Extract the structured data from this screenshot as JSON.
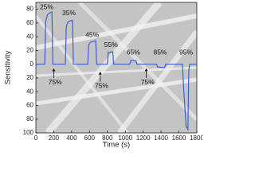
{
  "chart_data": {
    "type": "line",
    "x_label": "Time (s)",
    "y_label": "Sensitivity",
    "x": [
      0,
      100,
      110,
      130,
      170,
      180,
      190,
      330,
      340,
      360,
      410,
      420,
      430,
      580,
      590,
      610,
      670,
      680,
      690,
      800,
      810,
      860,
      870,
      880,
      1050,
      1060,
      1120,
      1130,
      1140,
      1350,
      1360,
      1440,
      1450,
      1460,
      1640,
      1650,
      1680,
      1700,
      1710,
      1720,
      1800
    ],
    "series": [
      {
        "name": "Sensitivity",
        "color": "#3b5fd0",
        "values": [
          0,
          0,
          62,
          72,
          76,
          76,
          0,
          0,
          55,
          62,
          64,
          0,
          0,
          0,
          28,
          32,
          34,
          0,
          0,
          0,
          17,
          18,
          0,
          0,
          0,
          5,
          5,
          0,
          0,
          0,
          -4,
          -5,
          0,
          0,
          0,
          -30,
          -90,
          -95,
          -10,
          0,
          0
        ]
      }
    ],
    "annotations": [
      "25%",
      "35%",
      "45%",
      "55%",
      "65%",
      "85%",
      "95%",
      "75%",
      "75%",
      "75%"
    ],
    "xlim": [
      0,
      1800
    ],
    "xticks": [
      0,
      200,
      400,
      600,
      800,
      1000,
      1200,
      1400,
      1600,
      1800
    ],
    "ylim": [
      -100,
      90
    ],
    "yticks": [
      80,
      60,
      40,
      20,
      0,
      {
        "value": -20,
        "label": "20"
      },
      {
        "value": -40,
        "label": "40"
      },
      {
        "value": -60,
        "label": "60"
      },
      {
        "value": -80,
        "label": "80"
      },
      {
        "value": -100,
        "label": "100"
      }
    ]
  }
}
